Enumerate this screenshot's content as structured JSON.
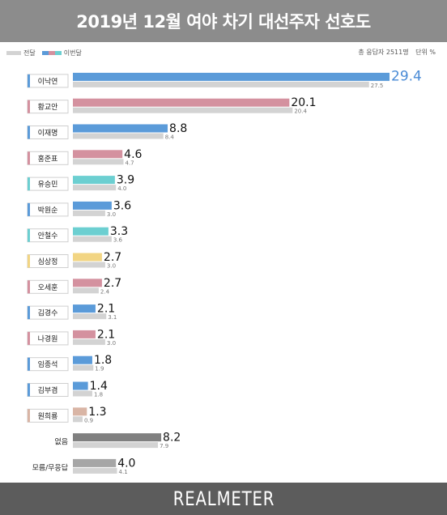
{
  "title": "2019년 12월 여야 차기 대선주자 선호도",
  "legend": {
    "previous": "전달",
    "current": "이번달"
  },
  "note": {
    "sample": "총 응답자 2511명",
    "unit": "단위 %"
  },
  "footer": {
    "brand": "REALMETER"
  },
  "colors": {
    "previous": "#d3d3d3",
    "blue": "#5b9bd9",
    "pink": "#d4919f",
    "teal": "#6ccfd1",
    "yellow": "#f2d583",
    "tan": "#d9b5a5",
    "darkgray": "#808080",
    "gray": "#a6a6a6"
  },
  "chart_data": {
    "type": "bar",
    "orientation": "horizontal",
    "xlim": [
      0,
      30
    ],
    "categories": [
      "이낙연",
      "황교안",
      "이재명",
      "홍준표",
      "유승민",
      "박원순",
      "안철수",
      "심상정",
      "오세훈",
      "김경수",
      "나경원",
      "임종석",
      "김부겸",
      "원희룡",
      "없음",
      "모름/무응답"
    ],
    "series": [
      {
        "name": "이번달",
        "values": [
          29.4,
          20.1,
          8.8,
          4.6,
          3.9,
          3.6,
          3.3,
          2.7,
          2.7,
          2.1,
          2.1,
          1.8,
          1.4,
          1.3,
          8.2,
          4.0
        ]
      },
      {
        "name": "전달",
        "values": [
          27.5,
          20.4,
          8.4,
          4.7,
          4.0,
          3.0,
          3.6,
          3.0,
          2.4,
          3.1,
          3.0,
          1.9,
          1.8,
          0.9,
          7.9,
          4.1
        ]
      }
    ],
    "current_labels": [
      "29.4",
      "20.1",
      "8.8",
      "4.6",
      "3.9",
      "3.6",
      "3.3",
      "2.7",
      "2.7",
      "2.1",
      "2.1",
      "1.8",
      "1.4",
      "1.3",
      "8.2",
      "4.0"
    ],
    "previous_labels": [
      "27.5",
      "20.4",
      "8.4",
      "4.7",
      "4.0",
      "3.0",
      "3.6",
      "3.0",
      "2.4",
      "3.1",
      "3.0",
      "1.9",
      "1.8",
      "0.9",
      "7.9",
      "4.1"
    ],
    "bar_colors": [
      "blue",
      "pink",
      "blue",
      "pink",
      "teal",
      "blue",
      "teal",
      "yellow",
      "pink",
      "blue",
      "pink",
      "blue",
      "blue",
      "tan",
      "darkgray",
      "gray"
    ],
    "boxed": [
      true,
      true,
      true,
      true,
      true,
      true,
      true,
      true,
      true,
      true,
      true,
      true,
      true,
      true,
      false,
      false
    ],
    "grid": false,
    "legend_position": "top-left"
  }
}
